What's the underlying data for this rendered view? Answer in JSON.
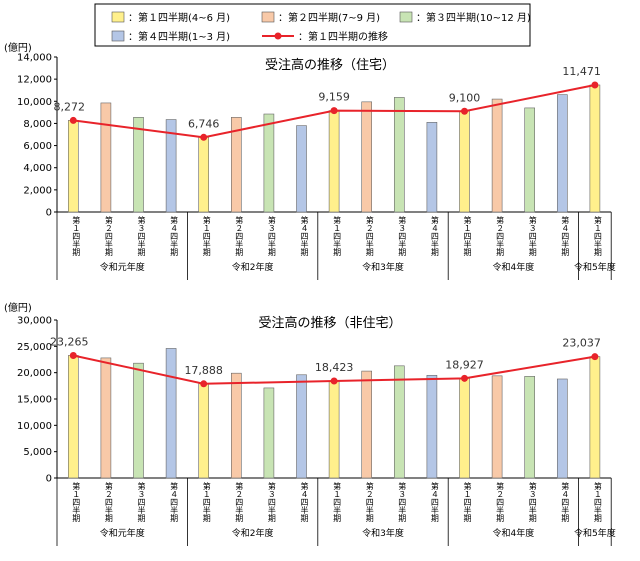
{
  "legend": [
    {
      "key": "q1",
      "label": "：第１四半期(4~6 月)",
      "color": "#fff08c"
    },
    {
      "key": "q2",
      "label": "：第２四半期(7~9 月)",
      "color": "#f8c9a8"
    },
    {
      "key": "q3",
      "label": "：第３四半期(10~12 月)",
      "color": "#c8e4b4"
    },
    {
      "key": "q4",
      "label": "：第４四半期(1~3 月)",
      "color": "#b4c6e6"
    },
    {
      "key": "line",
      "label": "：第１四半期の推移",
      "color": "#e8232a"
    }
  ],
  "chart_data": [
    {
      "type": "bar",
      "title": "受注高の推移（住宅）",
      "unit_label": "(億円)",
      "ylim": [
        0,
        14000
      ],
      "yticks": [
        "0",
        "2,000",
        "4,000",
        "6,000",
        "8,000",
        "10,000",
        "12,000",
        "14,000"
      ],
      "grid": false,
      "categories": [
        "第１四半期",
        "第２四半期",
        "第３四半期",
        "第４四半期",
        "第１四半期",
        "第２四半期",
        "第３四半期",
        "第４四半期",
        "第１四半期",
        "第２四半期",
        "第３四半期",
        "第４四半期",
        "第１四半期",
        "第２四半期",
        "第３四半期",
        "第４四半期",
        "第１四半期"
      ],
      "quarters": [
        1,
        2,
        3,
        4,
        1,
        2,
        3,
        4,
        1,
        2,
        3,
        4,
        1,
        2,
        3,
        4,
        1
      ],
      "values": [
        8272,
        9850,
        8550,
        8350,
        6746,
        8550,
        8850,
        7800,
        9159,
        9950,
        10350,
        8100,
        9100,
        10200,
        9400,
        10600,
        11471
      ],
      "years": [
        {
          "label": "令和元年度",
          "span": 4
        },
        {
          "label": "令和2年度",
          "span": 4
        },
        {
          "label": "令和3年度",
          "span": 4
        },
        {
          "label": "令和4年度",
          "span": 4
        },
        {
          "label": "令和5年度",
          "span": 1
        }
      ],
      "line": {
        "name": "第１四半期の推移",
        "indices": [
          0,
          4,
          8,
          12,
          16
        ],
        "values": [
          8272,
          6746,
          9159,
          9100,
          11471
        ],
        "labels": [
          "8,272",
          "6,746",
          "9,159",
          "9,100",
          "11,471"
        ]
      }
    },
    {
      "type": "bar",
      "title": "受注高の推移（非住宅）",
      "unit_label": "(億円)",
      "ylim": [
        0,
        30000
      ],
      "yticks": [
        "0",
        "5,000",
        "10,000",
        "15,000",
        "20,000",
        "25,000",
        "30,000"
      ],
      "grid": false,
      "categories": [
        "第１四半期",
        "第２四半期",
        "第３四半期",
        "第４四半期",
        "第１四半期",
        "第２四半期",
        "第３四半期",
        "第４四半期",
        "第１四半期",
        "第２四半期",
        "第３四半期",
        "第４四半期",
        "第１四半期",
        "第２四半期",
        "第３四半期",
        "第４四半期",
        "第１四半期"
      ],
      "quarters": [
        1,
        2,
        3,
        4,
        1,
        2,
        3,
        4,
        1,
        2,
        3,
        4,
        1,
        2,
        3,
        4,
        1
      ],
      "values": [
        23265,
        22800,
        21800,
        24600,
        17888,
        19900,
        17100,
        19600,
        18423,
        20300,
        21300,
        19500,
        18927,
        19400,
        19300,
        18800,
        23037
      ],
      "years": [
        {
          "label": "令和元年度",
          "span": 4
        },
        {
          "label": "令和2年度",
          "span": 4
        },
        {
          "label": "令和3年度",
          "span": 4
        },
        {
          "label": "令和4年度",
          "span": 4
        },
        {
          "label": "令和5年度",
          "span": 1
        }
      ],
      "line": {
        "name": "第１四半期の推移",
        "indices": [
          0,
          4,
          8,
          12,
          16
        ],
        "values": [
          23265,
          17888,
          18423,
          18927,
          23037
        ],
        "labels": [
          "23,265",
          "17,888",
          "18,423",
          "18,927",
          "23,037"
        ]
      }
    }
  ]
}
